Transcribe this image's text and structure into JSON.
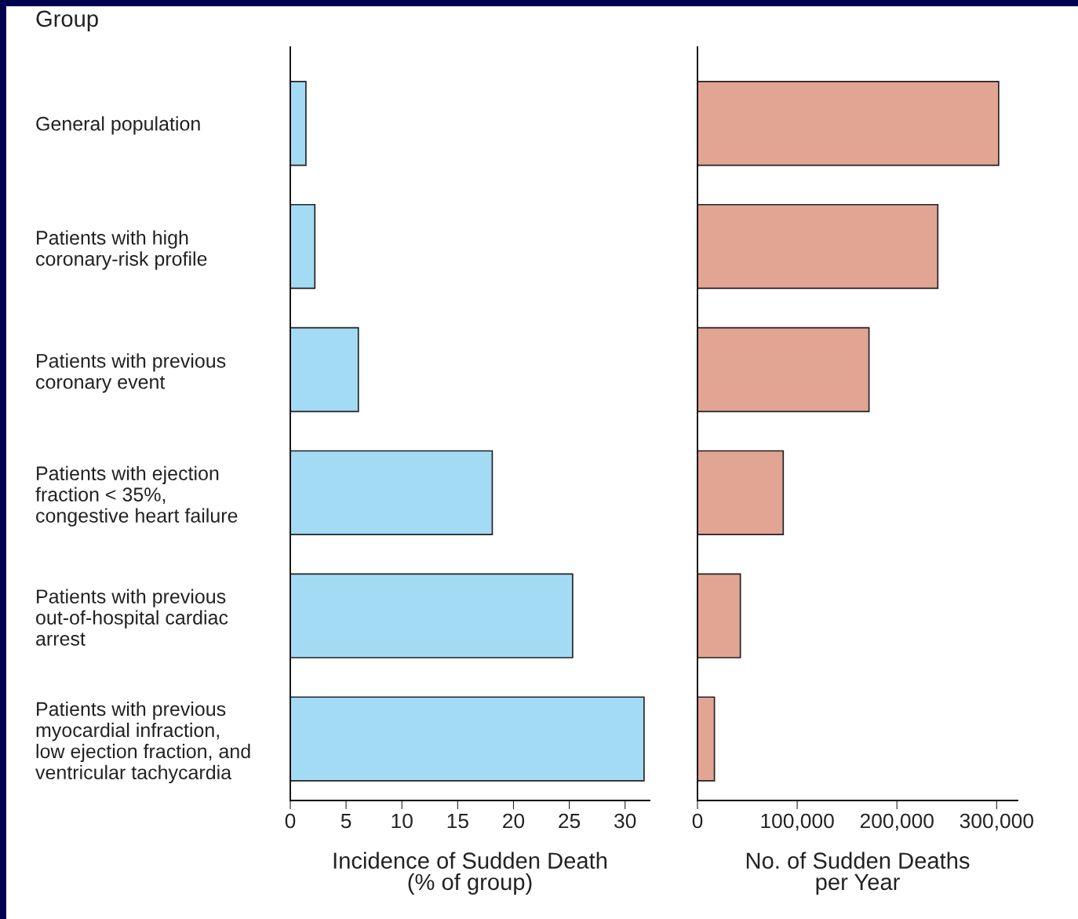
{
  "chart_data": [
    {
      "type": "bar",
      "orientation": "horizontal",
      "ylabel": "Group",
      "xlabel": "Incidence of Sudden Death\n(% of group)",
      "categories": [
        "General population",
        "Patients with high\ncoronary-risk profile",
        "Patients with previous\ncoronary event",
        "Patients with ejection\nfraction < 35%,\ncongestive heart failure",
        "Patients with previous\nout-of-hospital cardiac\narrest",
        "Patients with previous\nmyocardial infraction,\nlow ejection fraction, and\nventricular tachycardia"
      ],
      "values": [
        1.4,
        2.2,
        6.1,
        18.1,
        25.3,
        31.7
      ],
      "color": "#a3dbf5",
      "xlim": [
        0,
        32.2
      ],
      "xticks": [
        0,
        5,
        10,
        15,
        20,
        25,
        30
      ],
      "grid": false
    },
    {
      "type": "bar",
      "orientation": "horizontal",
      "xlabel": "No. of Sudden Deaths\nper Year",
      "categories": [
        null,
        null,
        null,
        null,
        null,
        null
      ],
      "values": [
        302000,
        241000,
        172000,
        86000,
        43000,
        17000
      ],
      "color": "#e2a594",
      "xlim": [
        0,
        321000
      ],
      "xticks": [
        {
          "value": 0,
          "label": "0"
        },
        {
          "value": 100000,
          "label": "100,000"
        },
        {
          "value": 200000,
          "label": "200,000"
        },
        {
          "value": 300000,
          "label": "300,000"
        }
      ],
      "tick_labels": "x",
      "grid": false
    }
  ]
}
